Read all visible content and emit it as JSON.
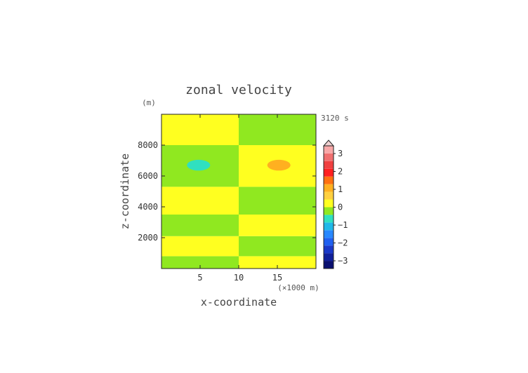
{
  "chart_data": {
    "type": "heatmap",
    "title": "zonal velocity",
    "xlabel": "x-coordinate",
    "ylabel": "z-coordinate",
    "x_unit": "(×1000 m)",
    "y_unit": "(m)",
    "time_label": "3120 s",
    "xlim": [
      0,
      20
    ],
    "ylim": [
      0,
      10000
    ],
    "xticks": [
      "5",
      "10",
      "15"
    ],
    "yticks": [
      "2000",
      "4000",
      "6000",
      "8000"
    ],
    "colorbar": {
      "labels": [
        "3",
        "2",
        "1",
        "0",
        "−1",
        "−2",
        "−3"
      ],
      "extend": "max",
      "colors": [
        "#0a1070",
        "#10209a",
        "#1a38c8",
        "#2060f0",
        "#2888ff",
        "#20b8e8",
        "#30e0c0",
        "#90e820",
        "#ffff20",
        "#ffd040",
        "#ffb020",
        "#ff7010",
        "#ff2020",
        "#f04040",
        "#f07070",
        "#f8a8a8"
      ]
    },
    "bands_left": [
      {
        "z0": 0,
        "z1": 800,
        "value": "0 to 0.5",
        "color": "#90e820"
      },
      {
        "z0": 800,
        "z1": 2100,
        "value": "0.5 to 1",
        "color": "#ffff20"
      },
      {
        "z0": 2100,
        "z1": 3500,
        "value": "0 to 0.5",
        "color": "#90e820"
      },
      {
        "z0": 3500,
        "z1": 5300,
        "value": "0.5 to 1",
        "color": "#ffff20"
      },
      {
        "z0": 5300,
        "z1": 8000,
        "value": "0 to 0.5",
        "color": "#90e820"
      },
      {
        "z0": 8000,
        "z1": 10000,
        "value": "0.5 to 1",
        "color": "#ffff20"
      }
    ],
    "bands_right": [
      {
        "z0": 0,
        "z1": 800,
        "value": "0.5 to 1",
        "color": "#ffff20"
      },
      {
        "z0": 800,
        "z1": 2100,
        "value": "0 to 0.5",
        "color": "#90e820"
      },
      {
        "z0": 2100,
        "z1": 3500,
        "value": "0.5 to 1",
        "color": "#ffff20"
      },
      {
        "z0": 3500,
        "z1": 5300,
        "value": "0 to 0.5",
        "color": "#90e820"
      },
      {
        "z0": 5300,
        "z1": 8000,
        "value": "0.5 to 1",
        "color": "#ffff20"
      },
      {
        "z0": 8000,
        "z1": 10000,
        "value": "0 to 0.5",
        "color": "#90e820"
      }
    ],
    "blobs": [
      {
        "x": 4.8,
        "z": 6700,
        "rx": 1.5,
        "rz": 350,
        "value": "-1 to -0.5",
        "color": "#30e0c0"
      },
      {
        "x": 15.2,
        "z": 6700,
        "rx": 1.5,
        "rz": 350,
        "value": "1 to 1.5",
        "color": "#ffb020"
      }
    ]
  }
}
